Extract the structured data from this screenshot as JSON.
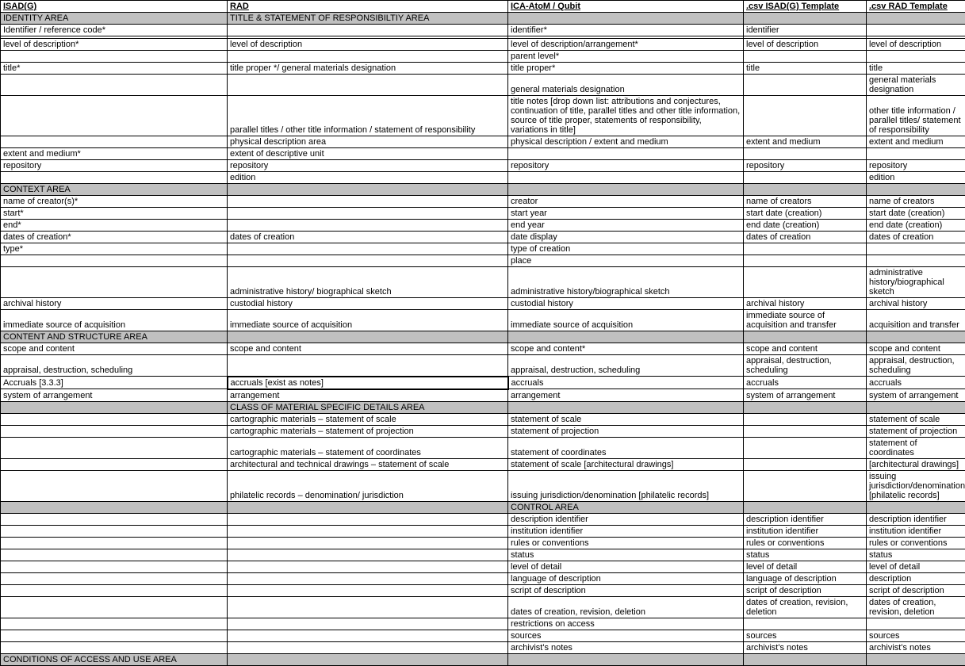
{
  "headers": {
    "col1": "ISAD(G)",
    "col2": "RAD",
    "col3": "ICA-AtoM / Qubit",
    "col4": ".csv ISAD(G) Template",
    "col5": ".csv RAD Template"
  },
  "rows": [
    {
      "section": true,
      "c1": "IDENTITY AREA",
      "c2": "TITLE & STATEMENT OF RESPONSIBILTIY AREA",
      "c3": "",
      "c4": "",
      "c5": ""
    },
    {
      "c1": "Identifier / reference code*",
      "c2": "",
      "c3": "identifier*",
      "c4": "identifier",
      "c5": ""
    },
    {
      "c1": "",
      "c2": "",
      "c3": "",
      "c4": "",
      "c5": ""
    },
    {
      "c1": "level of description*",
      "c2": "level of description",
      "c3": "level of description/arrangement*",
      "c4": "level of description",
      "c5": "level of description"
    },
    {
      "c1": "",
      "c2": "",
      "c3": "parent level*",
      "c4": "",
      "c5": ""
    },
    {
      "c1": "title*",
      "c2": "title proper */ general materials designation",
      "c3": "title proper*",
      "c4": "title",
      "c5": "title"
    },
    {
      "c1": "",
      "c2": "",
      "c3": "general materials designation",
      "c4": "",
      "c5": "general materials designation"
    },
    {
      "c1": "",
      "c2": "parallel titles / other title information / statement of responsibility",
      "c3": "title notes [drop down list: attributions and conjectures, continuation of title, parallel titles and other title information, source of title proper, statements of responsibility, variations in title]",
      "c4": "",
      "c5": "other title information / parallel titles/ statement of responsibility"
    },
    {
      "c1": "",
      "c2": "physical description area",
      "c3": "physical description / extent and medium",
      "c4": "extent and medium",
      "c5": "extent and medium"
    },
    {
      "c1": "extent and medium*",
      "c2": "extent of descriptive unit",
      "c3": "",
      "c4": "",
      "c5": ""
    },
    {
      "c1": "repository",
      "c2": "repository",
      "c3": "repository",
      "c4": "repository",
      "c5": "repository"
    },
    {
      "c1": "",
      "c2": "edition",
      "c3": "",
      "c4": "",
      "c5": "edition"
    },
    {
      "section": true,
      "c1": "CONTEXT AREA",
      "c2": "",
      "c3": "",
      "c4": "",
      "c5": ""
    },
    {
      "c1": "name of creator(s)*",
      "c2": "",
      "c3": "creator",
      "c4": "name of creators",
      "c5": "name of creators"
    },
    {
      "c1": "start*",
      "c2": "",
      "c3": "start year",
      "c4": "start date (creation)",
      "c5": "start date (creation)"
    },
    {
      "c1": "end*",
      "c2": "",
      "c3": "end year",
      "c4": "end date (creation)",
      "c5": "end date (creation)"
    },
    {
      "c1": "dates of creation*",
      "c2": "dates of creation",
      "c3": "date display",
      "c4": "dates of creation",
      "c5": "dates of creation"
    },
    {
      "c1": "type*",
      "c2": "",
      "c3": "type of creation",
      "c4": "",
      "c5": ""
    },
    {
      "c1": "",
      "c2": "",
      "c3": "place",
      "c4": "",
      "c5": ""
    },
    {
      "c1": "",
      "c2": "administrative history/ biographical sketch",
      "c3": "administrative history/biographical sketch",
      "c4": "",
      "c5": "administrative history/biographical sketch"
    },
    {
      "c1": "archival history",
      "c2": "custodial history",
      "c3": "custodial history",
      "c4": "archival history",
      "c5": "archival history"
    },
    {
      "c1": "immediate source of acquisition",
      "c2": "immediate source of acquisition",
      "c3": "immediate source of acquisition",
      "c4": "immediate source of acquisition and transfer",
      "c5": "acquisition and transfer"
    },
    {
      "section": true,
      "c1": "CONTENT AND STRUCTURE AREA",
      "c2": "",
      "c3": "",
      "c4": "",
      "c5": ""
    },
    {
      "c1": "scope and content",
      "c2": "scope and content",
      "c3": "scope and content*",
      "c4": "scope and content",
      "c5": "scope and content"
    },
    {
      "c1": "appraisal, destruction, scheduling",
      "c2": "",
      "c3": "appraisal, destruction, scheduling",
      "c4": "appraisal, destruction, scheduling",
      "c5": "appraisal, destruction, scheduling"
    },
    {
      "c1": "Accruals [3.3.3]",
      "c2": "accruals [exist as notes]",
      "c2boxed": true,
      "c3": "accruals",
      "c4": "accruals",
      "c5": "accruals"
    },
    {
      "c1": "system of arrangement",
      "c2": "arrangement",
      "c3": "arrangement",
      "c4": "system of arrangement",
      "c5": "system of arrangement"
    },
    {
      "section": true,
      "c1": "",
      "c2": "CLASS OF MATERIAL SPECIFIC DETAILS AREA",
      "c3": "",
      "c4": "",
      "c5": ""
    },
    {
      "c1": "",
      "c2": "cartographic materials – statement of scale",
      "c3": "statement of scale",
      "c4": "",
      "c5": "statement of scale"
    },
    {
      "c1": "",
      "c2": "cartographic materials – statement of projection",
      "c3": "statement of projection",
      "c4": "",
      "c5": "statement of projection"
    },
    {
      "c1": "",
      "c2": "cartographic materials – statement of coordinates",
      "c3": "statement of coordinates",
      "c4": "",
      "c5": "statement of coordinates"
    },
    {
      "c1": "",
      "c2": "architectural and technical drawings – statement of scale",
      "c3": "statement of scale [architectural drawings]",
      "c4": "",
      "c5": "[architectural drawings]"
    },
    {
      "c1": "",
      "c2": "philatelic records – denomination/ jurisdiction",
      "c3": "issuing jurisdiction/denomination [philatelic records]",
      "c4": "",
      "c5": "issuing jurisdiction/denomination [philatelic records]"
    },
    {
      "section": true,
      "c1": "",
      "c2": "",
      "c3": "CONTROL AREA",
      "c4": "",
      "c5": ""
    },
    {
      "c1": "",
      "c2": "",
      "c3": "description identifier",
      "c4": "description identifier",
      "c5": "description identifier"
    },
    {
      "c1": "",
      "c2": "",
      "c3": "institution identifier",
      "c4": "institution identifier",
      "c5": "institution identifier"
    },
    {
      "c1": "",
      "c2": "",
      "c3": "rules or conventions",
      "c4": "rules or conventions",
      "c5": "rules or conventions"
    },
    {
      "c1": "",
      "c2": "",
      "c3": "status",
      "c4": "status",
      "c5": "status"
    },
    {
      "c1": "",
      "c2": "",
      "c3": "level of detail",
      "c4": "level of detail",
      "c5": "level of detail"
    },
    {
      "c1": "",
      "c2": "",
      "c3": "language of description",
      "c4": "language of description",
      "c5": "description"
    },
    {
      "c1": "",
      "c2": "",
      "c3": "script of description",
      "c4": "script of description",
      "c5": "script of description"
    },
    {
      "c1": "",
      "c2": "",
      "c3": "dates of creation, revision, deletion",
      "c4": "dates of creation, revision, deletion",
      "c5": "dates of creation, revision, deletion"
    },
    {
      "c1": "",
      "c2": "",
      "c3": "restrictions on access",
      "c4": "",
      "c5": ""
    },
    {
      "c1": "",
      "c2": "",
      "c3": "sources",
      "c4": "sources",
      "c5": "sources"
    },
    {
      "c1": "",
      "c2": "",
      "c3": "archivist's notes",
      "c4": "archivist's notes",
      "c5": "archivist's notes"
    },
    {
      "section": true,
      "c1": "CONDITIONS OF ACCESS AND USE AREA",
      "c2": "",
      "c3": "",
      "c4": "",
      "c5": ""
    }
  ]
}
